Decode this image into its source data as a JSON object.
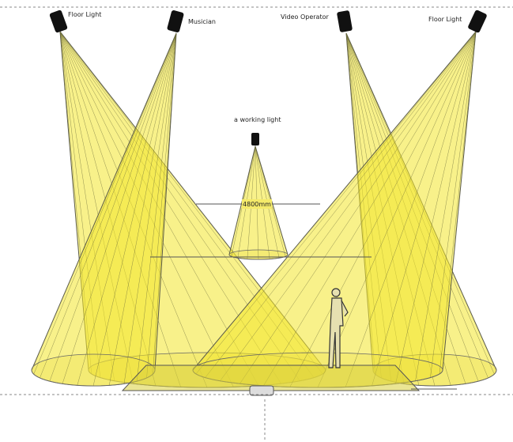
{
  "lights": [
    {
      "label": "Floor Light"
    },
    {
      "label": "Musician"
    },
    {
      "label": "Video Operator"
    },
    {
      "label": "Floor Light"
    }
  ],
  "working_light": {
    "label": "a working light"
  },
  "dimension": {
    "label": "4800mm"
  }
}
